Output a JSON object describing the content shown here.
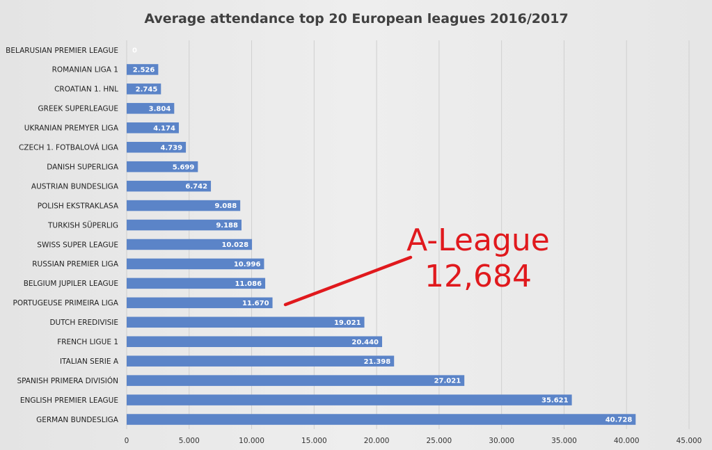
{
  "chart_data": {
    "type": "bar",
    "orientation": "horizontal",
    "title": "Average attendance top 20 European leagues 2016/2017",
    "categories": [
      "BELARUSIAN PREMIER LEAGUE",
      "ROMANIAN LIGA 1",
      "CROATIAN 1. HNL",
      "GREEK SUPERLEAGUE",
      "UKRANIAN PREMYER LIGA",
      "CZECH  1. FOTBALOVÁ LIGA",
      "DANISH SUPERLIGA",
      "AUSTRIAN BUNDESLIGA",
      "POLISH EKSTRAKLASA",
      "TURKISH SÜPERLIG",
      "SWISS SUPER LEAGUE",
      "RUSSIAN PREMIER LIGA",
      "BELGIUM JUPILER LEAGUE",
      "PORTUGEUSE PRIMEIRA LIGA",
      "DUTCH EREDIVISIE",
      "FRENCH LIGUE 1",
      "ITALIAN SERIE A",
      "SPANISH PRIMERA DIVISIÓN",
      "ENGLISH PREMIER LEAGUE",
      "GERMAN BUNDESLIGA"
    ],
    "values": [
      0,
      2526,
      2745,
      3804,
      4174,
      4739,
      5699,
      6742,
      9088,
      9188,
      10028,
      10996,
      11086,
      11670,
      19021,
      20440,
      21398,
      27021,
      35621,
      40728
    ],
    "value_labels": [
      "0",
      "2.526",
      "2.745",
      "3.804",
      "4.174",
      "4.739",
      "5.699",
      "6.742",
      "9.088",
      "9.188",
      "10.028",
      "10.996",
      "11.086",
      "11.670",
      "19.021",
      "20.440",
      "21.398",
      "27.021",
      "35.621",
      "40.728"
    ],
    "xlim": [
      0,
      45000
    ],
    "x_ticks": [
      0,
      5000,
      10000,
      15000,
      20000,
      25000,
      30000,
      35000,
      40000,
      45000
    ],
    "x_tick_labels": [
      "0",
      "5.000",
      "10.000",
      "15.000",
      "20.000",
      "25.000",
      "30.000",
      "35.000",
      "40.000",
      "45.000"
    ],
    "grid": true,
    "bar_color": "#5b84c8",
    "annotation": {
      "lines": [
        "A-League",
        "12,684"
      ],
      "color": "#e0191d",
      "value": 12684
    }
  }
}
